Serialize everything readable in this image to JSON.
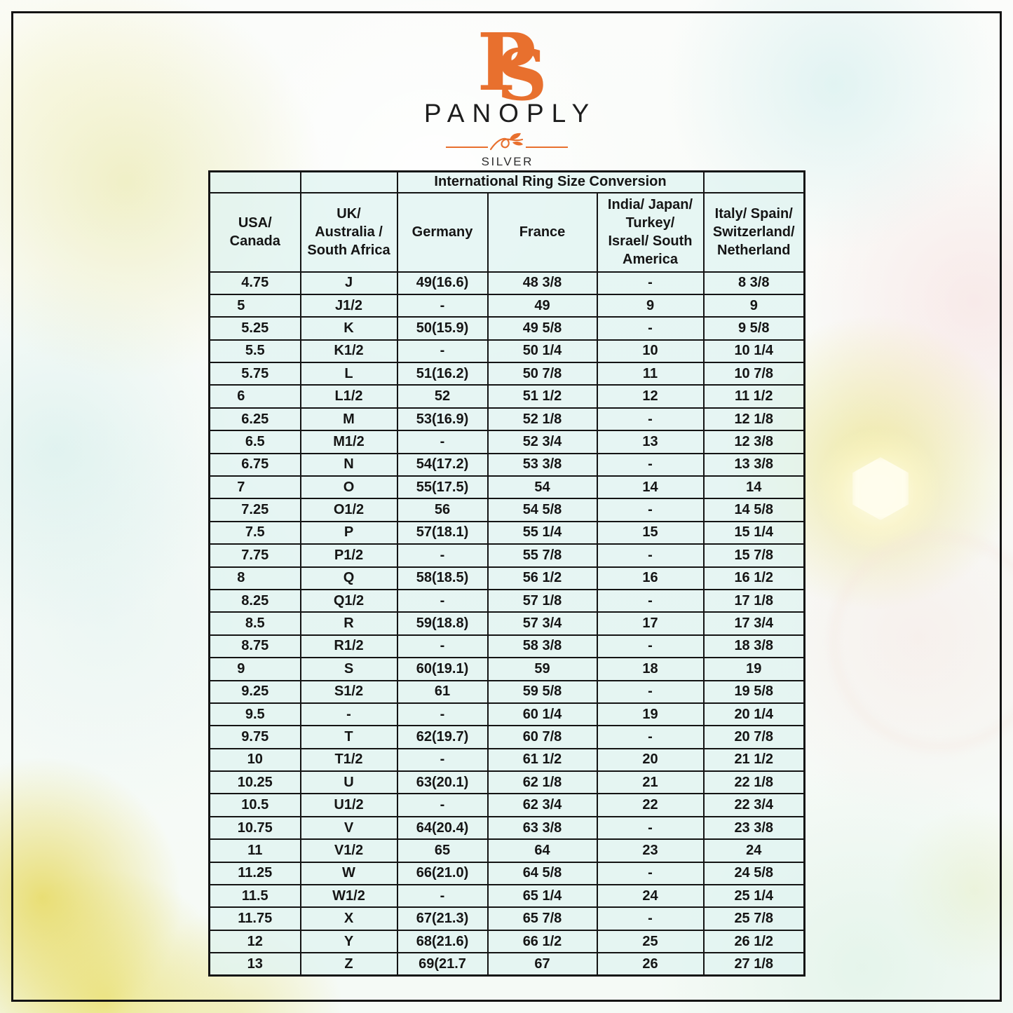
{
  "logo": {
    "monogram_p": "P",
    "monogram_s": "S",
    "brand": "PANOPLY",
    "subtitle": "SILVER"
  },
  "colors": {
    "accent_orange": "#E8702E",
    "table_fill": "#E0F3F1",
    "table_border": "#141414"
  },
  "table": {
    "title": "International Ring Size Conversion",
    "columns": [
      {
        "lines": [
          "USA/",
          "Canada"
        ]
      },
      {
        "lines": [
          "UK/",
          "Australia /",
          "South Africa"
        ]
      },
      {
        "lines": [
          "Germany"
        ]
      },
      {
        "lines": [
          "France"
        ]
      },
      {
        "lines": [
          "India/ Japan/",
          "Turkey/",
          "Israel/ South",
          "America"
        ]
      },
      {
        "lines": [
          "Italy/ Spain/",
          "Switzerland/",
          "Netherland"
        ]
      }
    ],
    "rows": [
      [
        "4.75",
        "J",
        "49(16.6)",
        "48 3/8",
        "-",
        "8 3/8"
      ],
      [
        "5",
        "J1/2",
        "-",
        "49",
        "9",
        "9"
      ],
      [
        "5.25",
        "K",
        "50(15.9)",
        "49 5/8",
        "-",
        "9 5/8"
      ],
      [
        "5.5",
        "K1/2",
        "-",
        "50 1/4",
        "10",
        "10 1/4"
      ],
      [
        "5.75",
        "L",
        "51(16.2)",
        "50 7/8",
        "11",
        "10 7/8"
      ],
      [
        "6",
        "L1/2",
        "52",
        "51 1/2",
        "12",
        "11 1/2"
      ],
      [
        "6.25",
        "M",
        "53(16.9)",
        "52 1/8",
        "-",
        "12 1/8"
      ],
      [
        "6.5",
        "M1/2",
        "-",
        "52 3/4",
        "13",
        "12 3/8"
      ],
      [
        "6.75",
        "N",
        "54(17.2)",
        "53 3/8",
        "-",
        "13 3/8"
      ],
      [
        "7",
        "O",
        "55(17.5)",
        "54",
        "14",
        "14"
      ],
      [
        "7.25",
        "O1/2",
        "56",
        "54 5/8",
        "-",
        "14 5/8"
      ],
      [
        "7.5",
        "P",
        "57(18.1)",
        "55 1/4",
        "15",
        "15 1/4"
      ],
      [
        "7.75",
        "P1/2",
        "-",
        "55 7/8",
        "-",
        "15 7/8"
      ],
      [
        "8",
        "Q",
        "58(18.5)",
        "56 1/2",
        "16",
        "16 1/2"
      ],
      [
        "8.25",
        "Q1/2",
        "-",
        "57 1/8",
        "-",
        "17 1/8"
      ],
      [
        "8.5",
        "R",
        "59(18.8)",
        "57 3/4",
        "17",
        "17 3/4"
      ],
      [
        "8.75",
        "R1/2",
        "-",
        "58 3/8",
        "-",
        "18 3/8"
      ],
      [
        "9",
        "S",
        "60(19.1)",
        "59",
        "18",
        "19"
      ],
      [
        "9.25",
        "S1/2",
        "61",
        "59 5/8",
        "-",
        "19 5/8"
      ],
      [
        "9.5",
        "-",
        "-",
        "60 1/4",
        "19",
        "20 1/4"
      ],
      [
        "9.75",
        "T",
        "62(19.7)",
        "60 7/8",
        "-",
        "20 7/8"
      ],
      [
        "10",
        "T1/2",
        "-",
        "61 1/2",
        "20",
        "21 1/2"
      ],
      [
        "10.25",
        "U",
        "63(20.1)",
        "62 1/8",
        "21",
        "22 1/8"
      ],
      [
        "10.5",
        "U1/2",
        "-",
        "62 3/4",
        "22",
        "22 3/4"
      ],
      [
        "10.75",
        "V",
        "64(20.4)",
        "63 3/8",
        "-",
        "23 3/8"
      ],
      [
        "11",
        "V1/2",
        "65",
        "64",
        "23",
        "24"
      ],
      [
        "11.25",
        "W",
        "66(21.0)",
        "64 5/8",
        "-",
        "24 5/8"
      ],
      [
        "11.5",
        "W1/2",
        "-",
        "65 1/4",
        "24",
        "25 1/4"
      ],
      [
        "11.75",
        "X",
        "67(21.3)",
        "65 7/8",
        "-",
        "25 7/8"
      ],
      [
        "12",
        "Y",
        "68(21.6)",
        "66 1/2",
        "25",
        "26 1/2"
      ],
      [
        "13",
        "Z",
        "69(21.7",
        "67",
        "26",
        "27 1/8"
      ]
    ]
  }
}
